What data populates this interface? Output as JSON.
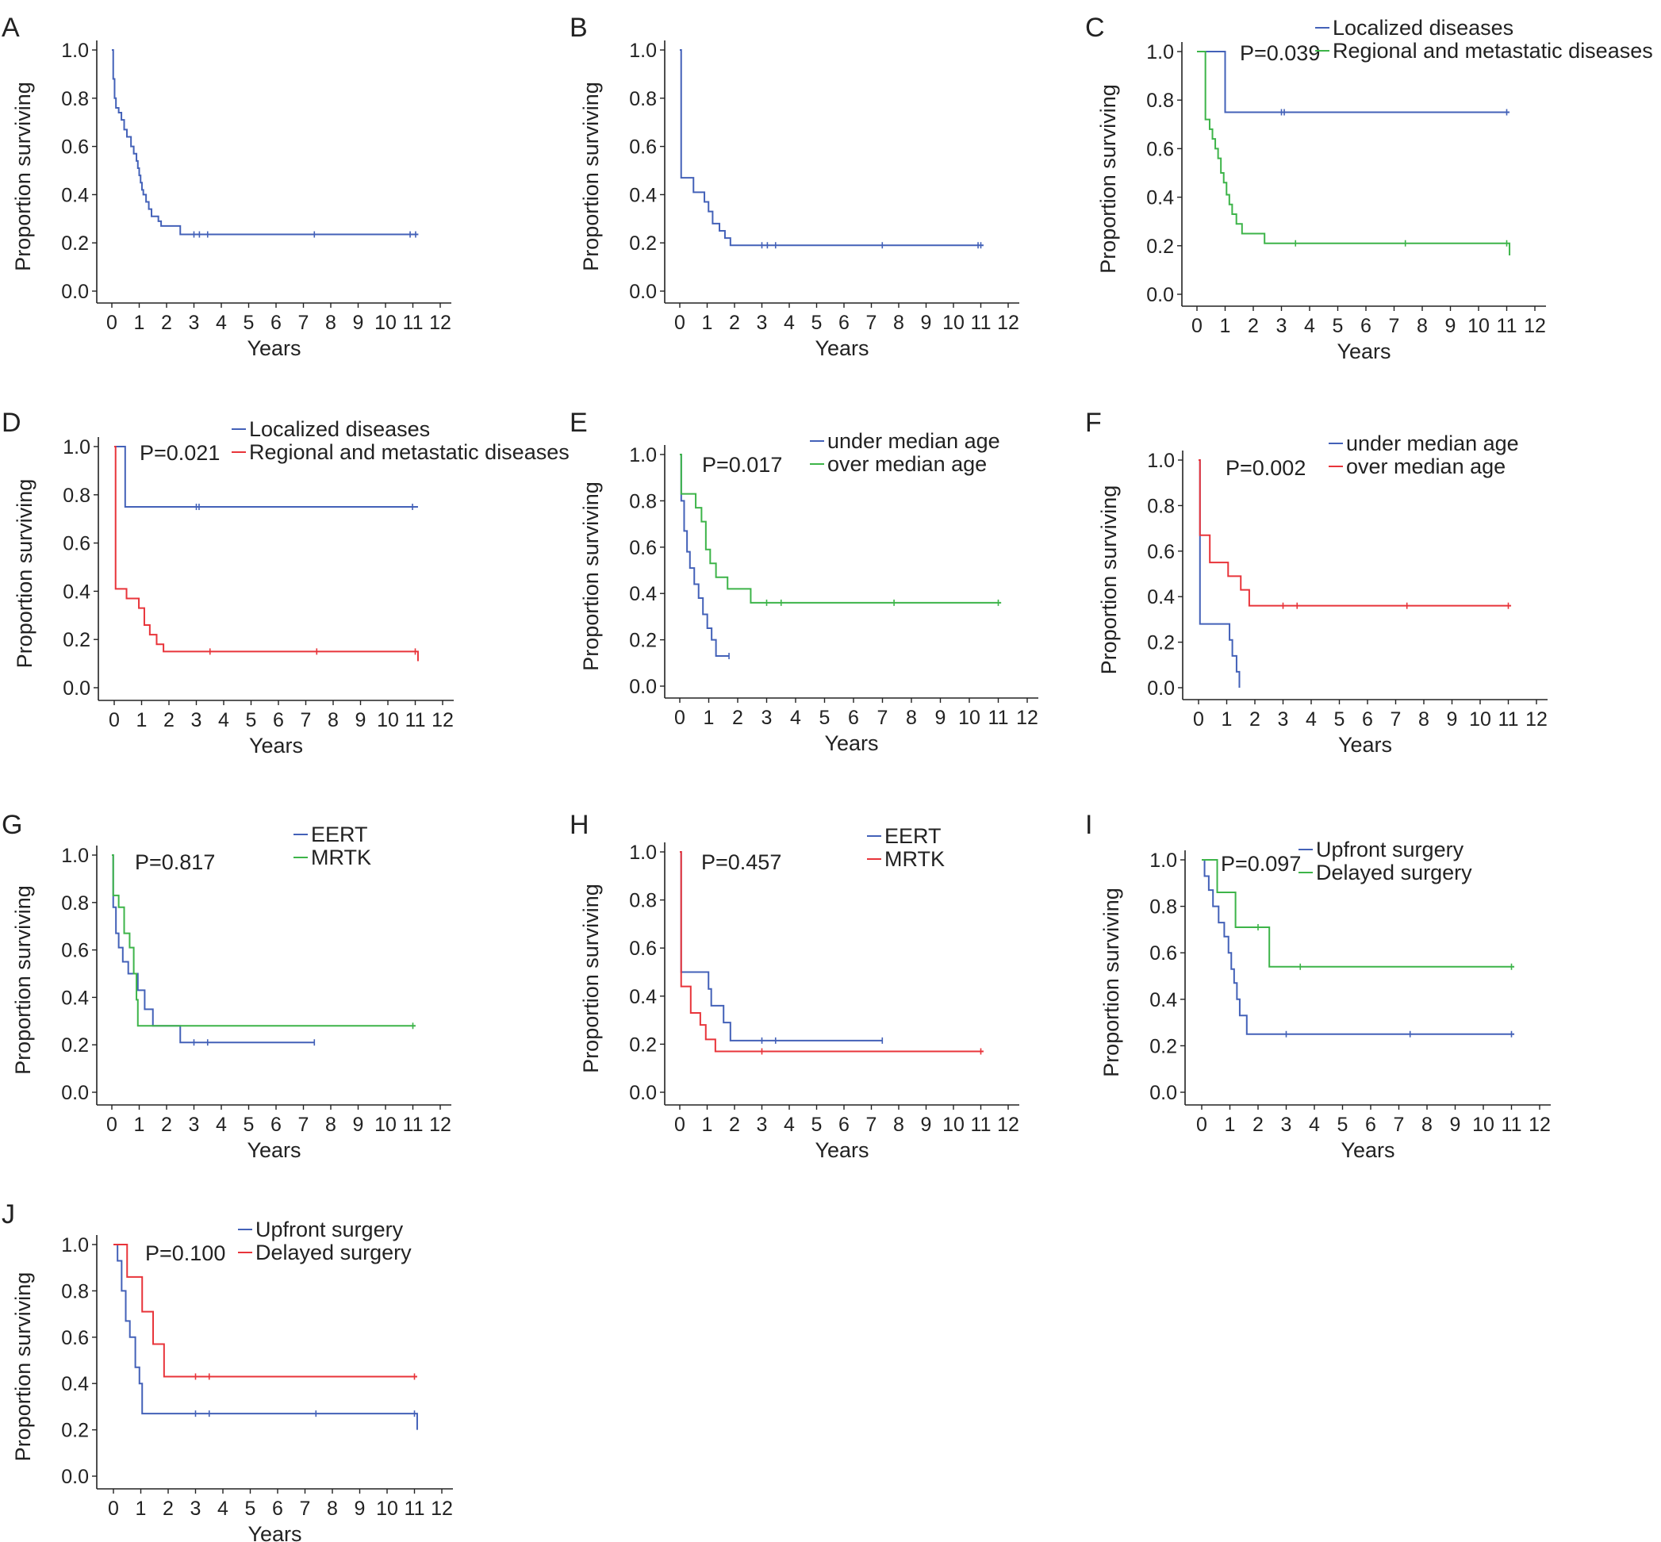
{
  "colors": {
    "blue": "#4361b8",
    "green": "#3db449",
    "red": "#e8343a",
    "axis": "#222222"
  },
  "chart_data": [
    {
      "panel": "A",
      "type": "line",
      "xlabel": "Years",
      "ylabel": "Proportion surviving",
      "xlim": [
        0,
        12
      ],
      "ylim": [
        0,
        1.0
      ],
      "xticks": [
        "0",
        "1",
        "2",
        "3",
        "4",
        "5",
        "6",
        "7",
        "8",
        "9",
        "10",
        "11",
        "12"
      ],
      "yticks": [
        "0.0",
        "0.2",
        "0.4",
        "0.6",
        "0.8",
        "1.0"
      ],
      "p_value": "",
      "legend": [],
      "series": [
        {
          "color": "blue",
          "x": [
            0,
            0.05,
            0.1,
            0.15,
            0.25,
            0.35,
            0.45,
            0.55,
            0.7,
            0.8,
            0.9,
            0.95,
            1.0,
            1.05,
            1.1,
            1.15,
            1.25,
            1.35,
            1.45,
            1.6,
            1.7,
            1.8,
            2.5,
            11.2
          ],
          "y": [
            1.0,
            0.88,
            0.8,
            0.76,
            0.74,
            0.71,
            0.67,
            0.64,
            0.6,
            0.57,
            0.54,
            0.51,
            0.48,
            0.45,
            0.42,
            0.4,
            0.37,
            0.34,
            0.31,
            0.31,
            0.29,
            0.27,
            0.235,
            0.235
          ],
          "censor": [
            3.0,
            3.2,
            3.5,
            7.4,
            10.9,
            11.1
          ]
        }
      ]
    },
    {
      "panel": "B",
      "type": "line",
      "xlabel": "Years",
      "ylabel": "Proportion surviving",
      "xlim": [
        0,
        12
      ],
      "ylim": [
        0,
        1.0
      ],
      "xticks": [
        "0",
        "1",
        "2",
        "3",
        "4",
        "5",
        "6",
        "7",
        "8",
        "9",
        "10",
        "11",
        "12"
      ],
      "yticks": [
        "0.0",
        "0.2",
        "0.4",
        "0.6",
        "0.8",
        "1.0"
      ],
      "p_value": "",
      "legend": [],
      "series": [
        {
          "color": "blue",
          "x": [
            0,
            0.05,
            0.5,
            0.9,
            1.05,
            1.2,
            1.45,
            1.65,
            1.85,
            11.1
          ],
          "y": [
            1.0,
            0.47,
            0.41,
            0.37,
            0.33,
            0.28,
            0.25,
            0.22,
            0.19,
            0.19
          ],
          "censor": [
            3.0,
            3.2,
            3.5,
            7.4,
            10.9,
            11.0
          ]
        }
      ]
    },
    {
      "panel": "C",
      "type": "line",
      "xlabel": "Years",
      "ylabel": "Proportion surviving",
      "xlim": [
        0,
        12
      ],
      "ylim": [
        0,
        1.0
      ],
      "xticks": [
        "0",
        "1",
        "2",
        "3",
        "4",
        "5",
        "6",
        "7",
        "8",
        "9",
        "10",
        "11",
        "12"
      ],
      "yticks": [
        "0.0",
        "0.2",
        "0.4",
        "0.6",
        "0.8",
        "1.0"
      ],
      "p_value": "P=0.039",
      "legend": [
        "Localized diseases",
        "Regional and metastatic diseases"
      ],
      "series": [
        {
          "name": "Localized diseases",
          "color": "blue",
          "x": [
            0,
            1.0,
            11.1
          ],
          "y": [
            1.0,
            0.75,
            0.75
          ],
          "censor": [
            3.0,
            3.1,
            11.0
          ]
        },
        {
          "name": "Regional and metastatic diseases",
          "color": "green",
          "x": [
            0,
            0.3,
            0.45,
            0.55,
            0.65,
            0.75,
            0.85,
            0.95,
            1.05,
            1.15,
            1.25,
            1.4,
            1.6,
            2.4,
            11.1
          ],
          "y": [
            1.0,
            0.72,
            0.68,
            0.64,
            0.6,
            0.56,
            0.5,
            0.46,
            0.41,
            0.37,
            0.33,
            0.29,
            0.25,
            0.21,
            0.16
          ],
          "censor": [
            3.5,
            7.4,
            11.0
          ]
        }
      ]
    },
    {
      "panel": "D",
      "type": "line",
      "xlabel": "Years",
      "ylabel": "Proportion surviving",
      "xlim": [
        0,
        12
      ],
      "ylim": [
        0,
        1.0
      ],
      "xticks": [
        "0",
        "1",
        "2",
        "3",
        "4",
        "5",
        "6",
        "7",
        "8",
        "9",
        "10",
        "11",
        "12"
      ],
      "yticks": [
        "0.0",
        "0.2",
        "0.4",
        "0.6",
        "0.8",
        "1.0"
      ],
      "p_value": "P=0.021",
      "legend": [
        "Localized diseases",
        "Regional and metastatic diseases"
      ],
      "series": [
        {
          "name": "Localized diseases",
          "color": "blue",
          "x": [
            0,
            0.4,
            11.1
          ],
          "y": [
            1.0,
            0.75,
            0.75
          ],
          "censor": [
            3.0,
            3.1,
            10.9
          ]
        },
        {
          "name": "Regional and metastatic diseases",
          "color": "red",
          "x": [
            0,
            0.05,
            0.45,
            0.9,
            1.1,
            1.3,
            1.55,
            1.8,
            11.1
          ],
          "y": [
            1.0,
            0.41,
            0.37,
            0.33,
            0.26,
            0.22,
            0.18,
            0.15,
            0.11
          ],
          "censor": [
            3.5,
            7.4,
            11.0
          ]
        }
      ]
    },
    {
      "panel": "E",
      "type": "line",
      "xlabel": "Years",
      "ylabel": "Proportion surviving",
      "xlim": [
        0,
        12
      ],
      "ylim": [
        0,
        1.0
      ],
      "xticks": [
        "0",
        "1",
        "2",
        "3",
        "4",
        "5",
        "6",
        "7",
        "8",
        "9",
        "10",
        "11",
        "12"
      ],
      "yticks": [
        "0.0",
        "0.2",
        "0.4",
        "0.6",
        "0.8",
        "1.0"
      ],
      "p_value": "P=0.017",
      "legend": [
        "under median age",
        "over median age"
      ],
      "series": [
        {
          "name": "under median age",
          "color": "blue",
          "x": [
            0,
            0.05,
            0.15,
            0.25,
            0.35,
            0.5,
            0.65,
            0.8,
            0.95,
            1.1,
            1.25,
            1.7
          ],
          "y": [
            1.0,
            0.8,
            0.67,
            0.58,
            0.51,
            0.44,
            0.38,
            0.31,
            0.25,
            0.2,
            0.13,
            0.13
          ],
          "censor": [
            1.7
          ]
        },
        {
          "name": "over median age",
          "color": "green",
          "x": [
            0,
            0.05,
            0.55,
            0.75,
            0.9,
            1.05,
            1.25,
            1.65,
            2.45,
            11.1
          ],
          "y": [
            1.0,
            0.83,
            0.77,
            0.71,
            0.59,
            0.53,
            0.47,
            0.42,
            0.36,
            0.36
          ],
          "censor": [
            3.0,
            3.5,
            7.4,
            11.0
          ]
        }
      ]
    },
    {
      "panel": "F",
      "type": "line",
      "xlabel": "Years",
      "ylabel": "Proportion surviving",
      "xlim": [
        0,
        12
      ],
      "ylim": [
        0,
        1.0
      ],
      "xticks": [
        "0",
        "1",
        "2",
        "3",
        "4",
        "5",
        "6",
        "7",
        "8",
        "9",
        "10",
        "11",
        "12"
      ],
      "yticks": [
        "0.0",
        "0.2",
        "0.4",
        "0.6",
        "0.8",
        "1.0"
      ],
      "p_value": "P=0.002",
      "legend": [
        "under median age",
        "over median age"
      ],
      "series": [
        {
          "name": "under median age",
          "color": "blue",
          "x": [
            0,
            0.05,
            0.85,
            1.1,
            1.2,
            1.35,
            1.45
          ],
          "y": [
            1.0,
            0.28,
            0.28,
            0.21,
            0.14,
            0.07,
            0.0
          ],
          "censor": []
        },
        {
          "name": "over median age",
          "color": "red",
          "x": [
            0,
            0.05,
            0.4,
            1.05,
            1.5,
            1.8,
            11.1
          ],
          "y": [
            1.0,
            0.67,
            0.55,
            0.49,
            0.43,
            0.36,
            0.36
          ],
          "censor": [
            3.0,
            3.5,
            7.4,
            11.0
          ]
        }
      ]
    },
    {
      "panel": "G",
      "type": "line",
      "xlabel": "Years",
      "ylabel": "Proportion surviving",
      "xlim": [
        0,
        12
      ],
      "ylim": [
        0,
        1.0
      ],
      "xticks": [
        "0",
        "1",
        "2",
        "3",
        "4",
        "5",
        "6",
        "7",
        "8",
        "9",
        "10",
        "11",
        "12"
      ],
      "yticks": [
        "0.0",
        "0.2",
        "0.4",
        "0.6",
        "0.8",
        "1.0"
      ],
      "p_value": "P=0.817",
      "legend": [
        "EERT",
        "MRTK"
      ],
      "series": [
        {
          "name": "EERT",
          "color": "blue",
          "x": [
            0,
            0.05,
            0.15,
            0.25,
            0.4,
            0.6,
            0.95,
            1.2,
            1.5,
            2.5,
            7.4
          ],
          "y": [
            1.0,
            0.78,
            0.67,
            0.61,
            0.55,
            0.5,
            0.43,
            0.35,
            0.28,
            0.21,
            0.21
          ],
          "censor": [
            3.0,
            3.5,
            7.4
          ]
        },
        {
          "name": "MRTK",
          "color": "green",
          "x": [
            0,
            0.05,
            0.25,
            0.45,
            0.65,
            0.8,
            0.9,
            0.95,
            11.1
          ],
          "y": [
            1.0,
            0.83,
            0.78,
            0.67,
            0.61,
            0.5,
            0.39,
            0.28,
            0.28
          ],
          "censor": [
            11.0
          ]
        }
      ]
    },
    {
      "panel": "H",
      "type": "line",
      "xlabel": "Years",
      "ylabel": "Proportion surviving",
      "xlim": [
        0,
        12
      ],
      "ylim": [
        0,
        1.0
      ],
      "xticks": [
        "0",
        "1",
        "2",
        "3",
        "4",
        "5",
        "6",
        "7",
        "8",
        "9",
        "10",
        "11",
        "12"
      ],
      "yticks": [
        "0.0",
        "0.2",
        "0.4",
        "0.6",
        "0.8",
        "1.0"
      ],
      "p_value": "P=0.457",
      "legend": [
        "EERT",
        "MRTK"
      ],
      "series": [
        {
          "name": "EERT",
          "color": "blue",
          "x": [
            0,
            0.05,
            1.05,
            1.15,
            1.6,
            1.85,
            7.4
          ],
          "y": [
            1.0,
            0.5,
            0.43,
            0.36,
            0.29,
            0.215,
            0.215
          ],
          "censor": [
            3.0,
            3.5,
            7.4
          ]
        },
        {
          "name": "MRTK",
          "color": "red",
          "x": [
            0,
            0.05,
            0.4,
            0.75,
            0.95,
            1.3,
            11.1
          ],
          "y": [
            1.0,
            0.44,
            0.33,
            0.28,
            0.22,
            0.17,
            0.17
          ],
          "censor": [
            3.0,
            11.0
          ]
        }
      ]
    },
    {
      "panel": "I",
      "type": "line",
      "xlabel": "Years",
      "ylabel": "Proportion surviving",
      "xlim": [
        0,
        12
      ],
      "ylim": [
        0,
        1.0
      ],
      "xticks": [
        "0",
        "1",
        "2",
        "3",
        "4",
        "5",
        "6",
        "7",
        "8",
        "9",
        "10",
        "11",
        "12"
      ],
      "yticks": [
        "0.0",
        "0.2",
        "0.4",
        "0.6",
        "0.8",
        "1.0"
      ],
      "p_value": "P=0.097",
      "legend": [
        "Upfront surgery",
        "Delayed surgery"
      ],
      "series": [
        {
          "name": "Upfront surgery",
          "color": "blue",
          "x": [
            0,
            0.1,
            0.25,
            0.4,
            0.6,
            0.8,
            0.95,
            1.05,
            1.15,
            1.25,
            1.35,
            1.6,
            11.1
          ],
          "y": [
            1.0,
            0.93,
            0.87,
            0.8,
            0.73,
            0.67,
            0.6,
            0.53,
            0.47,
            0.4,
            0.33,
            0.25,
            0.25
          ],
          "censor": [
            3.0,
            7.4,
            11.0
          ]
        },
        {
          "name": "Delayed surgery",
          "color": "green",
          "x": [
            0,
            0.55,
            1.2,
            2.4,
            11.1
          ],
          "y": [
            1.0,
            0.86,
            0.71,
            0.54,
            0.54
          ],
          "censor": [
            2.0,
            3.5,
            11.0
          ]
        }
      ]
    },
    {
      "panel": "J",
      "type": "line",
      "xlabel": "Years",
      "ylabel": "Proportion surviving",
      "xlim": [
        0,
        12
      ],
      "ylim": [
        0,
        1.0
      ],
      "xticks": [
        "0",
        "1",
        "2",
        "3",
        "4",
        "5",
        "6",
        "7",
        "8",
        "9",
        "10",
        "11",
        "12"
      ],
      "yticks": [
        "0.0",
        "0.2",
        "0.4",
        "0.6",
        "0.8",
        "1.0"
      ],
      "p_value": "P=0.100",
      "legend": [
        "Upfront surgery",
        "Delayed surgery"
      ],
      "series": [
        {
          "name": "Upfront surgery",
          "color": "blue",
          "x": [
            0,
            0.15,
            0.3,
            0.45,
            0.6,
            0.8,
            0.95,
            1.05,
            11.1
          ],
          "y": [
            1.0,
            0.93,
            0.8,
            0.67,
            0.6,
            0.47,
            0.4,
            0.27,
            0.2
          ],
          "censor": [
            3.0,
            3.5,
            7.4,
            11.0
          ]
        },
        {
          "name": "Delayed surgery",
          "color": "red",
          "x": [
            0,
            0.5,
            1.05,
            1.45,
            1.85,
            11.1
          ],
          "y": [
            1.0,
            0.86,
            0.71,
            0.57,
            0.43,
            0.43
          ],
          "censor": [
            3.0,
            3.5,
            11.0
          ]
        }
      ]
    }
  ]
}
